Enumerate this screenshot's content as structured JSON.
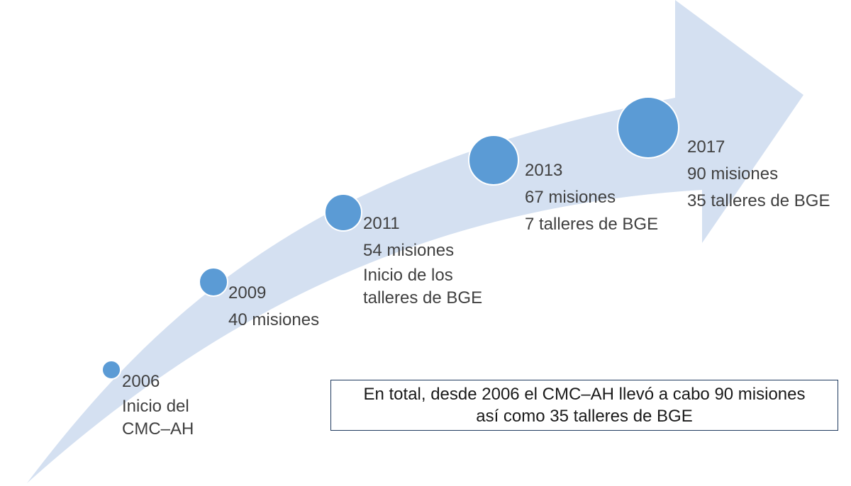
{
  "colors": {
    "arrow_fill": "#d4e0f1",
    "circle_fill": "#5b9bd5",
    "circle_stroke": "#ffffff",
    "summary_border": "#1f3a5f"
  },
  "milestones": [
    {
      "year": "2006",
      "lines": [
        "Inicio del",
        "CMC–AH"
      ]
    },
    {
      "year": "2009",
      "lines": [
        "40 misiones"
      ]
    },
    {
      "year": "2011",
      "lines": [
        "54 misiones",
        "Inicio de los",
        "talleres de BGE"
      ]
    },
    {
      "year": "2013",
      "lines": [
        "67 misiones",
        "7 talleres de BGE"
      ]
    },
    {
      "year": "2017",
      "lines": [
        "90 misiones",
        "35 talleres de BGE"
      ]
    }
  ],
  "summary": {
    "line1": "En total, desde 2006 el CMC–AH llevó a cabo 90 misiones",
    "line2": "así como 35 talleres de BGE"
  }
}
